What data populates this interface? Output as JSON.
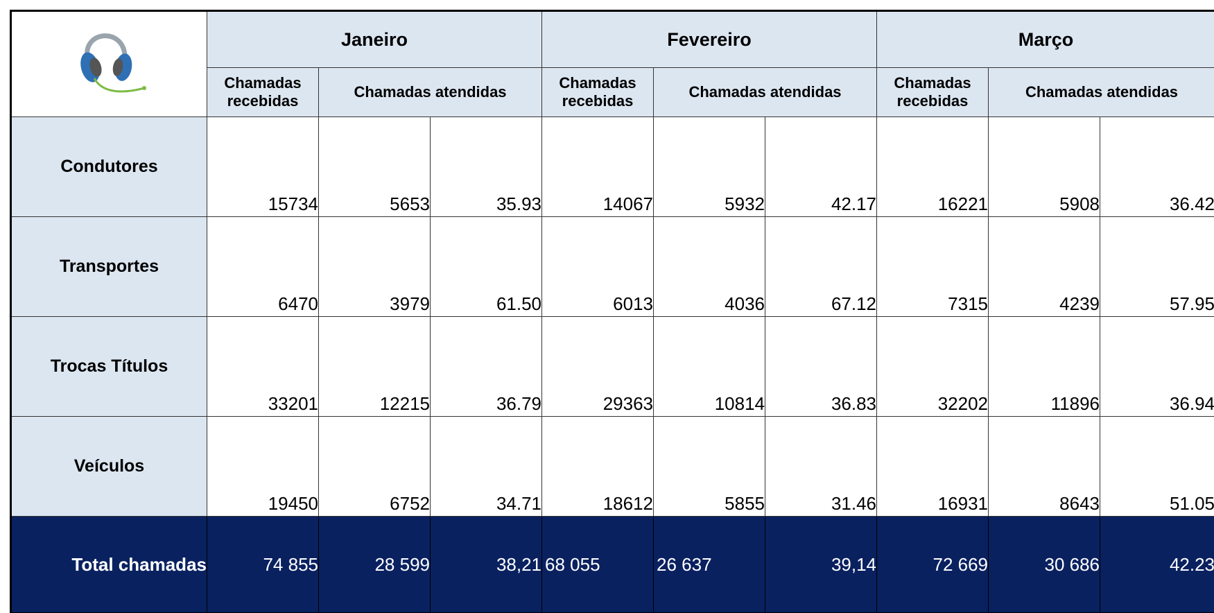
{
  "header": {
    "months": [
      {
        "name": "Janeiro",
        "received": "Chamadas recebidas",
        "answered": "Chamadas atendidas"
      },
      {
        "name": "Fevereiro",
        "received": "Chamadas recebidas",
        "answered": "Chamadas atendidas"
      },
      {
        "name": "Março",
        "received": "Chamadas recebidas",
        "answered": "Chamadas atendidas"
      }
    ]
  },
  "table": {
    "rows": [
      {
        "label": "Condutores",
        "cells": [
          "15734",
          "5653",
          "35.93",
          "14067",
          "5932",
          "42.17",
          "16221",
          "5908",
          "36.42"
        ]
      },
      {
        "label": "Transportes",
        "cells": [
          "6470",
          "3979",
          "61.50",
          "6013",
          "4036",
          "67.12",
          "7315",
          "4239",
          "57.95"
        ]
      },
      {
        "label": "Trocas Títulos",
        "cells": [
          "33201",
          "12215",
          "36.79",
          "29363",
          "10814",
          "36.83",
          "32202",
          "11896",
          "36.94"
        ]
      },
      {
        "label": "Veículos",
        "cells": [
          "19450",
          "6752",
          "34.71",
          "18612",
          "5855",
          "31.46",
          "16931",
          "8643",
          "51.05"
        ]
      }
    ]
  },
  "total": {
    "label": "Total chamadas",
    "cells": [
      "74 855",
      "28 599",
      "38,21",
      "68 055",
      "26 637",
      "39,14",
      "72 669",
      "30 686",
      "42.23"
    ]
  }
}
